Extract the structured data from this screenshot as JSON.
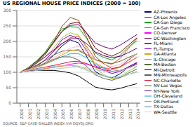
{
  "chart_data": {
    "type": "line",
    "title": "US REGIONAL HOUSE PRICE INDICES (2000 = 100)",
    "annotations": [
      "SOURCE: S&P CASE-SHILLER INDEX VIA DQYDJ.ORG"
    ],
    "x": [
      2000,
      2001,
      2002,
      2003,
      2004,
      2005,
      2006,
      2007,
      2008,
      2009,
      2010,
      2011,
      2012,
      2013,
      2014
    ],
    "xlim": [
      1999.6,
      2014.4
    ],
    "xticks": [
      2000,
      2001,
      2002,
      2003,
      2004,
      2005,
      2006,
      2007,
      2008,
      2009,
      2010,
      2011,
      2012,
      2013,
      2014
    ],
    "ylim": [
      0,
      300
    ],
    "yticks": [
      0,
      50,
      100,
      150,
      200,
      250,
      300
    ],
    "grid": true,
    "legend": "right",
    "series": [
      {
        "name": "AZ-Phoenix",
        "color": "#00008B",
        "values": [
          100,
          108,
          118,
          130,
          155,
          185,
          205,
          195,
          150,
          102,
          88,
          82,
          95,
          118,
          130
        ]
      },
      {
        "name": "CA-Los Angeles",
        "color": "#8B0000",
        "values": [
          100,
          114,
          133,
          158,
          195,
          232,
          258,
          262,
          225,
          178,
          162,
          152,
          165,
          188,
          212
        ]
      },
      {
        "name": "CA-San Diego",
        "color": "#00AA00",
        "values": [
          100,
          116,
          138,
          165,
          205,
          240,
          248,
          245,
          208,
          162,
          148,
          140,
          155,
          182,
          202
        ]
      },
      {
        "name": "CA-San Francisco",
        "color": "#FF4400",
        "values": [
          100,
          110,
          122,
          140,
          168,
          192,
          212,
          218,
          182,
          142,
          132,
          126,
          145,
          178,
          210
        ]
      },
      {
        "name": "CO-Denver",
        "color": "#FF00FF",
        "values": [
          100,
          105,
          108,
          112,
          116,
          120,
          126,
          130,
          126,
          118,
          114,
          110,
          118,
          133,
          148
        ]
      },
      {
        "name": "DC-Washington",
        "color": "#660066",
        "values": [
          100,
          115,
          136,
          162,
          198,
          232,
          252,
          254,
          226,
          195,
          183,
          175,
          188,
          205,
          222
        ]
      },
      {
        "name": "FL-Miami",
        "color": "#8B4513",
        "values": [
          100,
          112,
          132,
          158,
          198,
          248,
          278,
          268,
          212,
          152,
          128,
          112,
          118,
          140,
          160
        ]
      },
      {
        "name": "FL-Tampa",
        "color": "#9400D3",
        "values": [
          100,
          109,
          120,
          140,
          168,
          205,
          220,
          208,
          168,
          122,
          106,
          96,
          103,
          118,
          132
        ]
      },
      {
        "name": "GA-Atlanta",
        "color": "#DAA520",
        "values": [
          100,
          105,
          108,
          112,
          116,
          120,
          122,
          120,
          110,
          98,
          88,
          80,
          83,
          93,
          103
        ]
      },
      {
        "name": "IL-Chicago",
        "color": "#00CED1",
        "values": [
          100,
          108,
          117,
          127,
          138,
          150,
          160,
          160,
          146,
          126,
          113,
          103,
          106,
          116,
          126
        ]
      },
      {
        "name": "MA-Boston",
        "color": "#556B2F",
        "values": [
          100,
          111,
          124,
          138,
          156,
          168,
          172,
          170,
          156,
          140,
          133,
          128,
          136,
          148,
          160
        ]
      },
      {
        "name": "MI-Detroit",
        "color": "#000000",
        "values": [
          100,
          104,
          106,
          106,
          106,
          103,
          98,
          88,
          70,
          52,
          46,
          43,
          48,
          56,
          63
        ]
      },
      {
        "name": "MN-Minneapolis",
        "color": "#606060",
        "values": [
          100,
          110,
          120,
          130,
          142,
          150,
          150,
          140,
          118,
          92,
          80,
          74,
          83,
          98,
          110
        ]
      },
      {
        "name": "NC-Charlotte",
        "color": "#DC143C",
        "values": [
          100,
          106,
          112,
          117,
          122,
          128,
          134,
          136,
          128,
          116,
          108,
          103,
          106,
          116,
          126
        ]
      },
      {
        "name": "NV-Las Vegas",
        "color": "#9ACD32",
        "values": [
          100,
          115,
          132,
          150,
          178,
          212,
          228,
          220,
          175,
          115,
          92,
          80,
          86,
          104,
          118
        ]
      },
      {
        "name": "NY-New York",
        "color": "#4B0082",
        "values": [
          100,
          112,
          130,
          150,
          172,
          193,
          208,
          210,
          192,
          166,
          154,
          147,
          152,
          164,
          178
        ]
      },
      {
        "name": "OH-Cleveland",
        "color": "#87CEEB",
        "values": [
          100,
          106,
          111,
          115,
          119,
          122,
          122,
          116,
          106,
          95,
          88,
          84,
          86,
          93,
          100
        ]
      },
      {
        "name": "OR-Portland",
        "color": "#FF8C00",
        "values": [
          100,
          108,
          116,
          126,
          140,
          156,
          170,
          174,
          158,
          130,
          116,
          108,
          116,
          132,
          148
        ]
      },
      {
        "name": "TX-Dallas",
        "color": "#B0C4DE",
        "values": [
          100,
          103,
          106,
          108,
          110,
          113,
          116,
          118,
          114,
          108,
          104,
          102,
          106,
          113,
          120
        ]
      },
      {
        "name": "WA-Seattle",
        "color": "#FFB6C1",
        "values": [
          100,
          109,
          119,
          132,
          146,
          163,
          178,
          184,
          168,
          140,
          126,
          118,
          126,
          143,
          160
        ]
      }
    ]
  }
}
